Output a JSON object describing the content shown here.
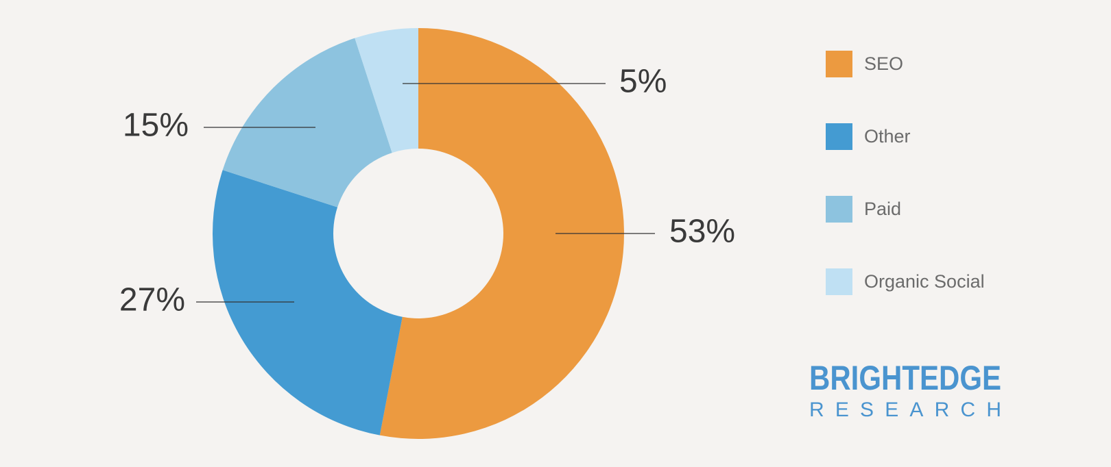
{
  "chart_data": {
    "type": "donut",
    "categories": [
      "SEO",
      "Other",
      "Paid",
      "Organic Social"
    ],
    "values": [
      53,
      27,
      15,
      5
    ],
    "value_labels": [
      "53%",
      "27%",
      "15%",
      "5%"
    ],
    "colors": [
      "#ec9a40",
      "#449bd2",
      "#8dc3df",
      "#bfe0f3"
    ],
    "legend": "right"
  },
  "logo": {
    "name": "BRIGHTEDGE",
    "subtitle": "RESEARCH"
  }
}
